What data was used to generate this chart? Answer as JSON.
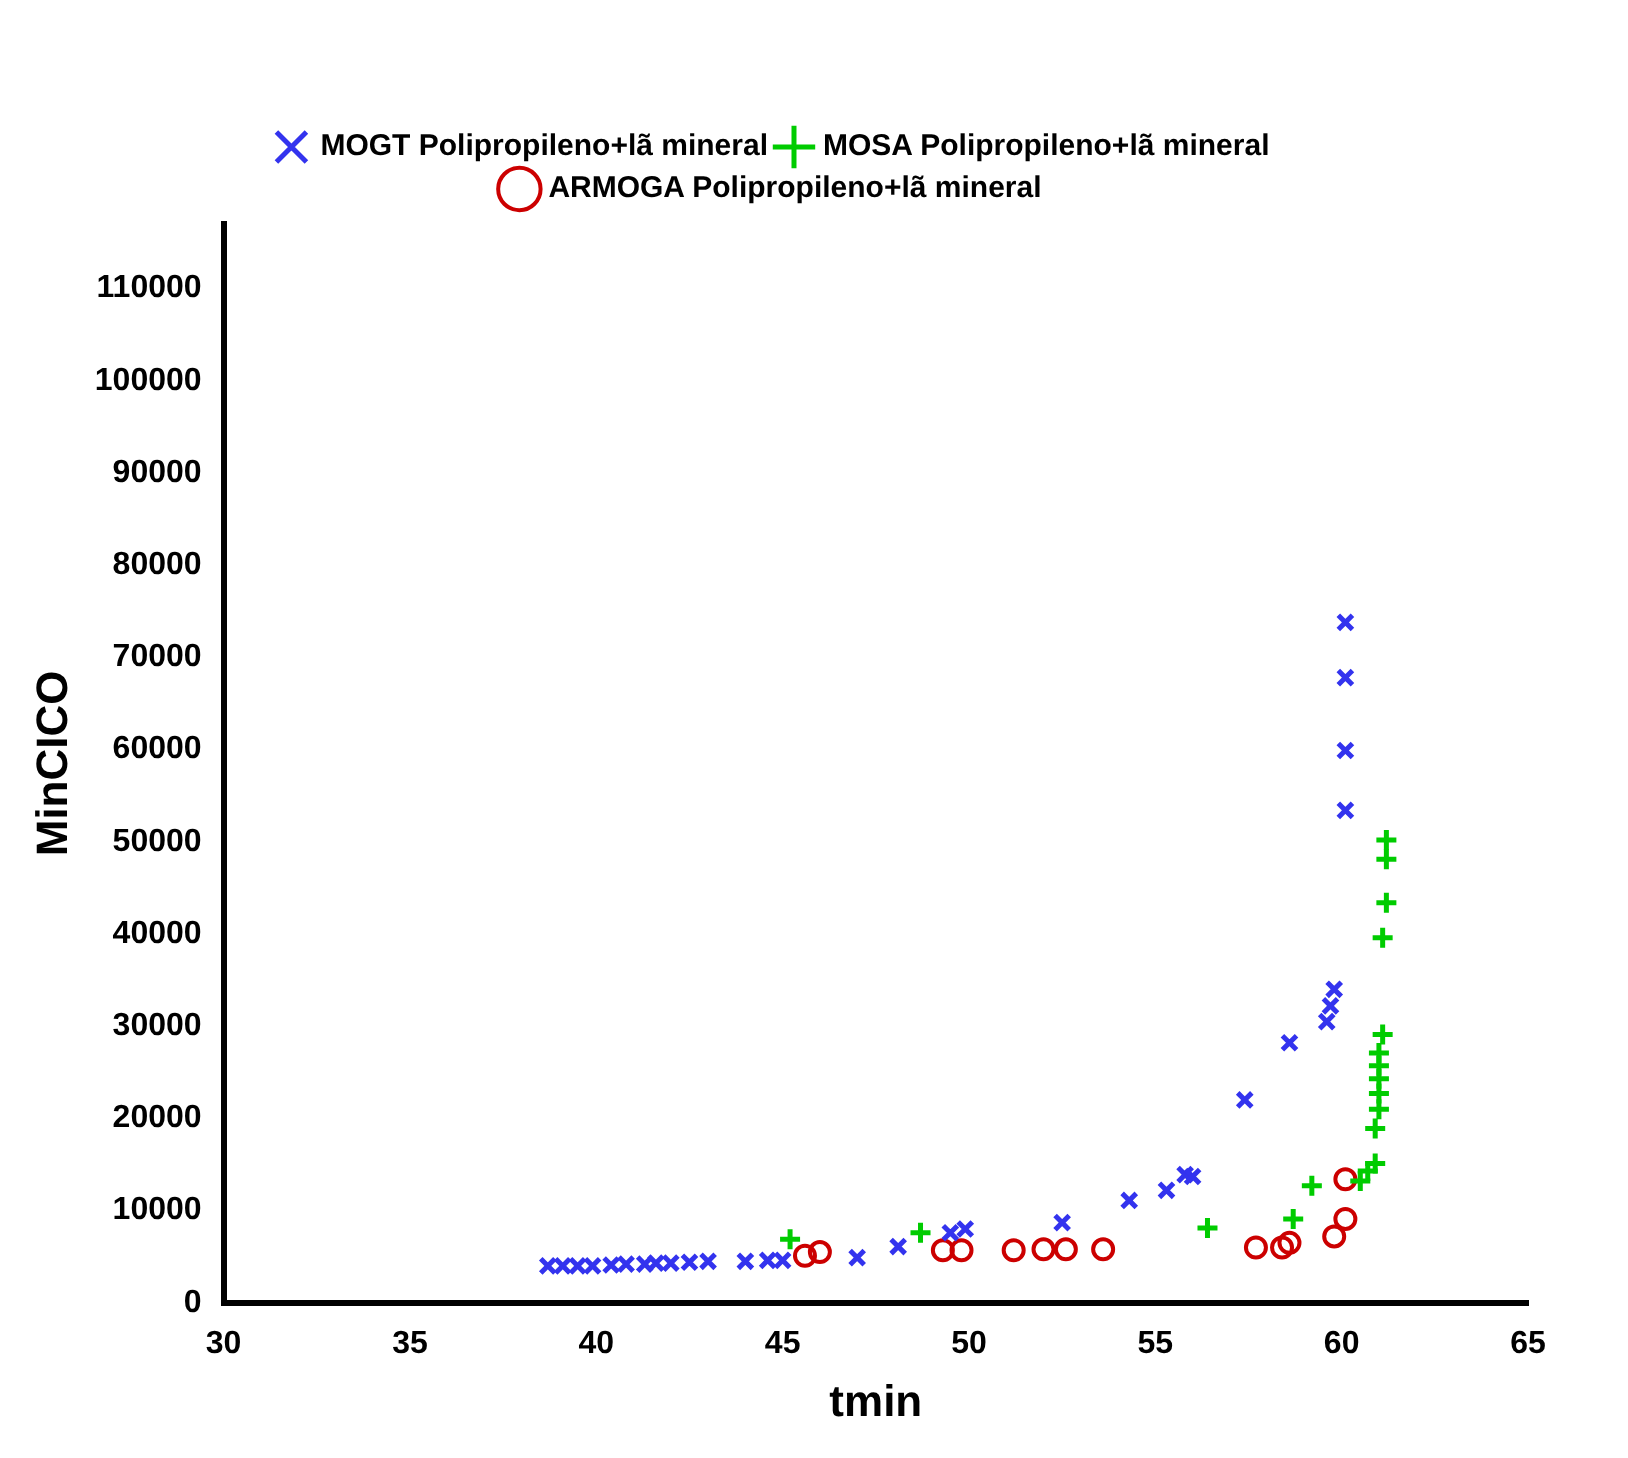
{
  "chart_data": {
    "type": "scatter",
    "xlabel": "tmin",
    "ylabel": "MinCICO",
    "xlim": [
      30,
      65
    ],
    "xticks": [
      30,
      35,
      40,
      45,
      50,
      55,
      60,
      65
    ],
    "ylim": [
      0,
      117000
    ],
    "yticks": [
      0,
      10000,
      20000,
      30000,
      40000,
      50000,
      60000,
      70000,
      80000,
      90000,
      100000,
      110000
    ],
    "grid": false,
    "legend": "top",
    "series": [
      {
        "name": "MOGT Polipropileno+lã mineral",
        "color": "#3333ee",
        "marker": "cross",
        "x": [
          38.7,
          39.1,
          39.5,
          39.9,
          40.4,
          40.8,
          41.3,
          41.6,
          42.0,
          42.5,
          43.0,
          44.0,
          44.6,
          45.0,
          47.0,
          48.1,
          49.5,
          49.9,
          52.5,
          54.3,
          55.3,
          55.8,
          56.0,
          57.4,
          58.6,
          59.6,
          59.7,
          59.8,
          60.1,
          60.1,
          60.1,
          60.1
        ],
        "values": [
          4000,
          4000,
          4000,
          4000,
          4100,
          4200,
          4200,
          4300,
          4300,
          4400,
          4500,
          4500,
          4600,
          4600,
          4900,
          6100,
          7600,
          8000,
          8700,
          11100,
          12200,
          13900,
          13700,
          22000,
          28200,
          30500,
          32200,
          34000,
          53400,
          59900,
          67800,
          73800
        ]
      },
      {
        "name": "MOSA Polipropileno+lã mineral",
        "color": "#00cc00",
        "marker": "plus",
        "x": [
          45.2,
          48.7,
          56.4,
          58.7,
          59.2,
          60.5,
          60.7,
          60.9,
          60.9,
          61.0,
          61.0,
          61.0,
          61.0,
          61.0,
          61.1,
          61.1,
          61.2,
          61.2,
          61.2
        ],
        "values": [
          6900,
          7600,
          8100,
          9100,
          12700,
          13200,
          14300,
          15100,
          18900,
          21000,
          22700,
          24300,
          25700,
          27100,
          29100,
          39600,
          43400,
          48100,
          50200
        ]
      },
      {
        "name": "ARMOGA Polipropileno+lã mineral",
        "color": "#cc0000",
        "marker": "circle",
        "x": [
          45.6,
          46.0,
          49.3,
          49.8,
          51.2,
          52.0,
          52.6,
          53.6,
          57.7,
          58.4,
          58.6,
          59.8,
          60.1,
          60.1
        ],
        "values": [
          5100,
          5500,
          5700,
          5700,
          5700,
          5800,
          5800,
          5800,
          6000,
          6000,
          6500,
          7200,
          9100,
          13400
        ]
      }
    ]
  }
}
